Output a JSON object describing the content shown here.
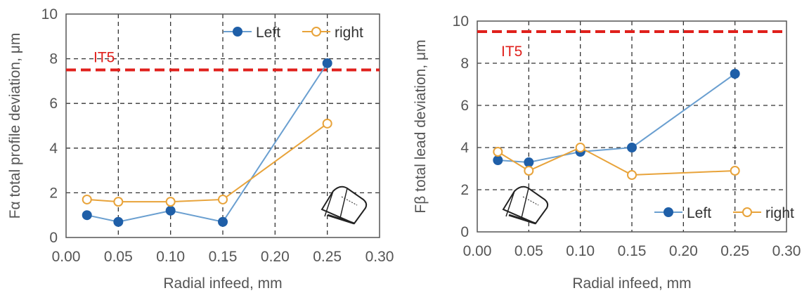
{
  "colors": {
    "left": "#1f5fa8",
    "left_line": "#6a9fd0",
    "right": "#e8a33a",
    "reference": "#e0201c",
    "grid": "#333333"
  },
  "chart_data": [
    {
      "type": "line",
      "xlabel": "Radial infeed, mm",
      "ylabel": "Fα total profile deviation, μm",
      "xlim": [
        0.0,
        0.3
      ],
      "ylim": [
        0,
        10
      ],
      "xticks": [
        "0.00",
        "0.05",
        "0.10",
        "0.15",
        "0.20",
        "0.25",
        "0.30"
      ],
      "yticks": [
        "0",
        "2",
        "4",
        "6",
        "8",
        "10"
      ],
      "grid": true,
      "legend": "top-right",
      "reference_line": {
        "label": "IT5",
        "y": 7.5
      },
      "icon": "gear-tooth-icon",
      "series": [
        {
          "name": "Left",
          "x": [
            0.02,
            0.05,
            0.1,
            0.15,
            0.25
          ],
          "y": [
            1.0,
            0.7,
            1.2,
            0.7,
            7.8
          ]
        },
        {
          "name": "right",
          "x": [
            0.02,
            0.05,
            0.1,
            0.15,
            0.25
          ],
          "y": [
            1.7,
            1.6,
            1.6,
            1.7,
            5.1
          ]
        }
      ]
    },
    {
      "type": "line",
      "xlabel": "Radial infeed, mm",
      "ylabel": "Fβ total lead deviation, μm",
      "xlim": [
        0.0,
        0.3
      ],
      "ylim": [
        0,
        10
      ],
      "xticks": [
        "0.00",
        "0.05",
        "0.10",
        "0.15",
        "0.20",
        "0.25",
        "0.30"
      ],
      "yticks": [
        "0",
        "2",
        "4",
        "6",
        "8",
        "10"
      ],
      "grid": true,
      "legend": "bottom-right",
      "reference_line": {
        "label": "IT5",
        "y": 9.5
      },
      "icon": "gear-tooth-icon",
      "series": [
        {
          "name": "Left",
          "x": [
            0.02,
            0.05,
            0.1,
            0.15,
            0.25
          ],
          "y": [
            3.4,
            3.3,
            3.8,
            4.0,
            7.5
          ]
        },
        {
          "name": "right",
          "x": [
            0.02,
            0.05,
            0.1,
            0.15,
            0.25
          ],
          "y": [
            3.8,
            2.9,
            4.0,
            2.7,
            2.9
          ]
        }
      ]
    }
  ]
}
